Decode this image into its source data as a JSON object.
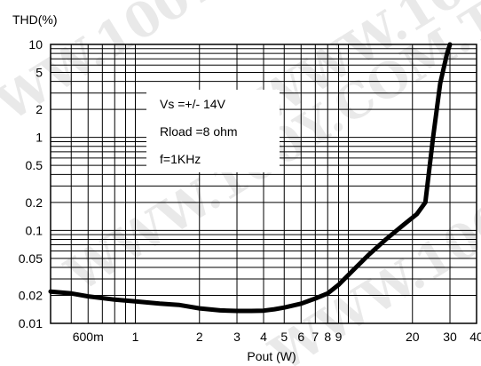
{
  "chart_data": {
    "type": "line",
    "ylabel": "THD(%)",
    "xlabel": "Pout (W)",
    "x_scale": "log",
    "y_scale": "log",
    "xlim": [
      0.4,
      40
    ],
    "ylim": [
      0.01,
      10
    ],
    "grid": true,
    "x_ticks": [
      {
        "value": 0.6,
        "label": "600m"
      },
      {
        "value": 1,
        "label": "1"
      },
      {
        "value": 2,
        "label": "2"
      },
      {
        "value": 3,
        "label": "3"
      },
      {
        "value": 4,
        "label": "4"
      },
      {
        "value": 5,
        "label": "5"
      },
      {
        "value": 6,
        "label": "6"
      },
      {
        "value": 7,
        "label": "7"
      },
      {
        "value": 8,
        "label": "8"
      },
      {
        "value": 9,
        "label": "9"
      },
      {
        "value": 20,
        "label": "20"
      },
      {
        "value": 30,
        "label": "30"
      },
      {
        "value": 40,
        "label": "40"
      }
    ],
    "y_ticks": [
      {
        "value": 0.01,
        "label": "0.01"
      },
      {
        "value": 0.02,
        "label": "0.02"
      },
      {
        "value": 0.05,
        "label": "0.05"
      },
      {
        "value": 0.1,
        "label": "0.1"
      },
      {
        "value": 0.2,
        "label": "0.2"
      },
      {
        "value": 0.5,
        "label": "0.5"
      },
      {
        "value": 1,
        "label": "1"
      },
      {
        "value": 2,
        "label": "2"
      },
      {
        "value": 5,
        "label": "5"
      },
      {
        "value": 10,
        "label": "10"
      }
    ],
    "annotations": [
      "Vs =+/- 14V",
      "Rload =8 ohm",
      "f=1KHz"
    ],
    "series": [
      {
        "x": [
          0.4,
          0.5,
          0.6,
          0.8,
          1.0,
          1.3,
          1.6,
          2.0,
          2.5,
          3.0,
          3.5,
          4.0,
          4.5,
          5.0,
          6.0,
          7.0,
          8.0,
          9.0,
          10.5,
          12.5,
          15.0,
          18.0,
          21.0,
          23.0,
          25.0,
          27.0,
          29.0,
          30.0
        ],
        "y": [
          0.022,
          0.021,
          0.0195,
          0.018,
          0.0172,
          0.0163,
          0.0158,
          0.0145,
          0.0138,
          0.0136,
          0.0136,
          0.0137,
          0.0142,
          0.0148,
          0.0163,
          0.0185,
          0.021,
          0.026,
          0.037,
          0.055,
          0.08,
          0.113,
          0.15,
          0.2,
          1.0,
          3.8,
          7.8,
          10.0
        ],
        "color": "#000000"
      }
    ]
  },
  "watermark": "WWW.100Y.COM.TW"
}
